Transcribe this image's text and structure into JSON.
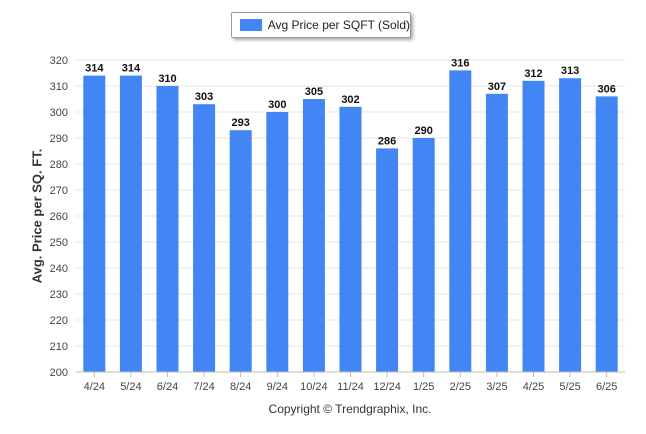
{
  "chart_data": {
    "type": "bar",
    "categories": [
      "4/24",
      "5/24",
      "6/24",
      "7/24",
      "8/24",
      "9/24",
      "10/24",
      "11/24",
      "12/24",
      "1/25",
      "2/25",
      "3/25",
      "4/25",
      "5/25",
      "6/25"
    ],
    "series": [
      {
        "name": "Avg Price per SQFT (Sold)",
        "values": [
          314,
          314,
          310,
          303,
          293,
          300,
          305,
          302,
          286,
          290,
          316,
          307,
          312,
          313,
          306
        ]
      }
    ],
    "ylabel": "Avg. Price per SQ. FT.",
    "xlabel": "",
    "ylim": [
      200,
      320
    ],
    "yticks": [
      200,
      210,
      220,
      230,
      240,
      250,
      260,
      270,
      280,
      290,
      300,
      310,
      320
    ],
    "grid": true,
    "legend_position": "top-center",
    "bar_color": "#4285f4"
  },
  "footer": "Copyright © Trendgraphix, Inc."
}
